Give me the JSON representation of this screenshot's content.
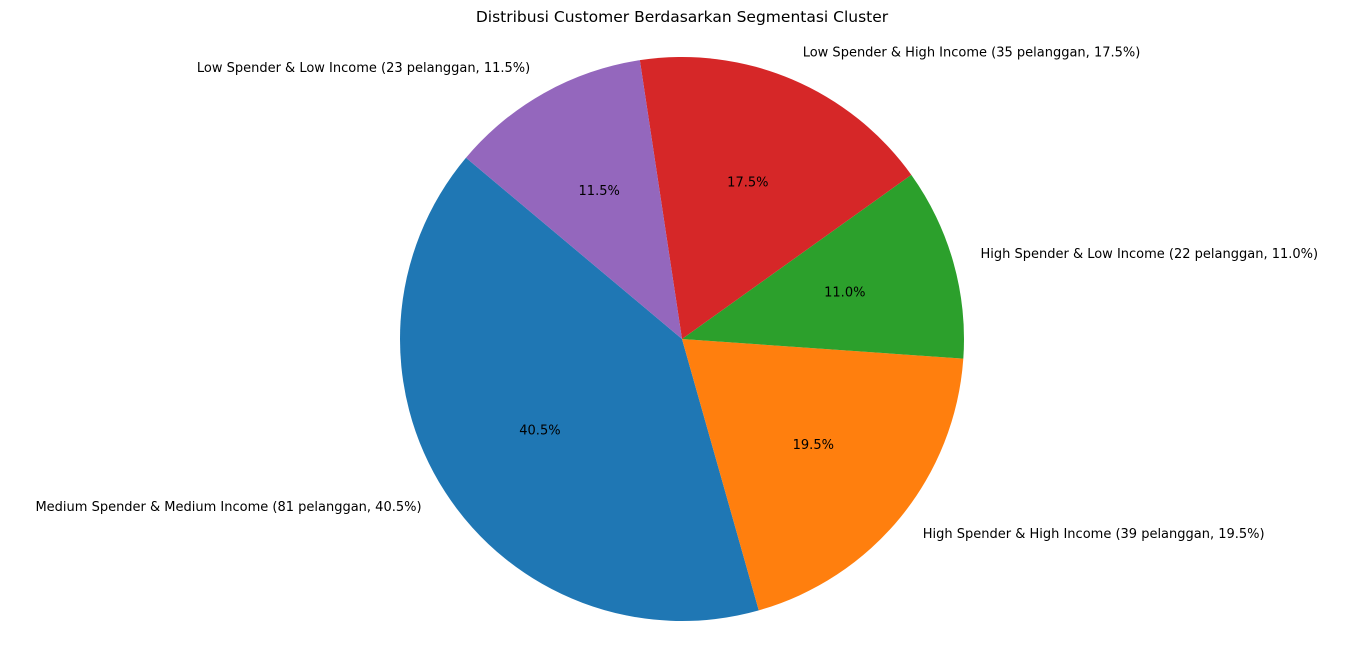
{
  "chart_data": {
    "type": "pie",
    "title": "Distribusi Customer Berdasarkan Segmentasi Cluster",
    "start_angle_deg": 140,
    "direction": "counterclockwise",
    "slices": [
      {
        "label": "Medium Spender & Medium Income (81 pelanggan, 40.5%)",
        "value": 81,
        "percent": 40.5,
        "pct_label": "40.5%",
        "color": "#1f77b4"
      },
      {
        "label": "High Spender & High Income (39 pelanggan, 19.5%)",
        "value": 39,
        "percent": 19.5,
        "pct_label": "19.5%",
        "color": "#ff7f0e"
      },
      {
        "label": "High Spender & Low Income (22 pelanggan, 11.0%)",
        "value": 22,
        "percent": 11.0,
        "pct_label": "11.0%",
        "color": "#2ca02c"
      },
      {
        "label": "Low Spender & High Income (35 pelanggan, 17.5%)",
        "value": 35,
        "percent": 17.5,
        "pct_label": "17.5%",
        "color": "#d62728"
      },
      {
        "label": "Low Spender & Low Income (23 pelanggan, 11.5%)",
        "value": 23,
        "percent": 11.5,
        "pct_label": "11.5%",
        "color": "#9467bd"
      }
    ]
  }
}
